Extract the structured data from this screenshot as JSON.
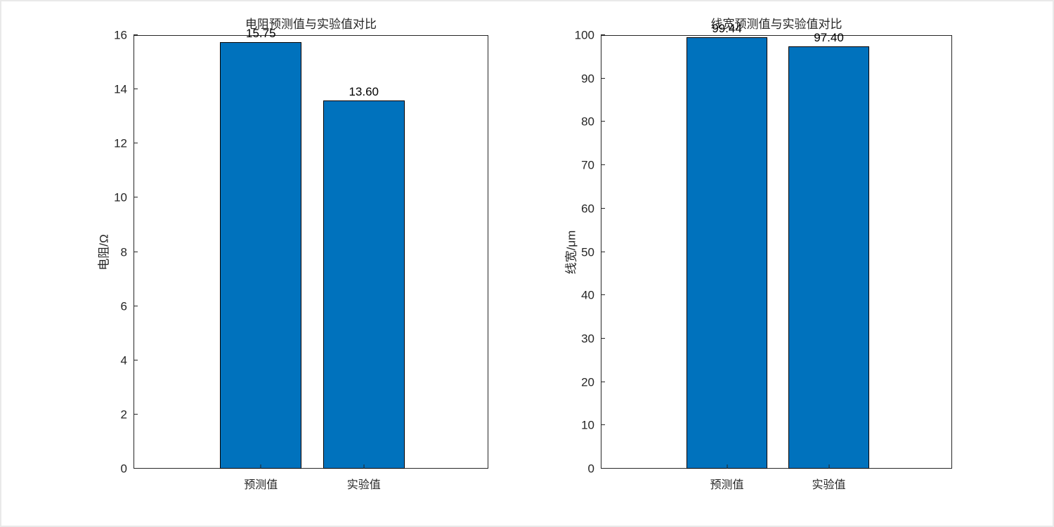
{
  "style": {
    "bar_color": "#0072BD",
    "bar_edge_color": "#000000",
    "axis_color": "#262626",
    "background": "#ffffff"
  },
  "chart_data": [
    {
      "type": "bar",
      "title": "电阻预测值与实验值对比",
      "ylabel": "电阻/Ω",
      "xlabel": "",
      "categories": [
        "预测值",
        "实验值"
      ],
      "values": [
        15.75,
        13.6
      ],
      "value_labels": [
        "15.75",
        "13.60"
      ],
      "ylim": [
        0,
        16
      ],
      "yticks": [
        0,
        2,
        4,
        6,
        8,
        10,
        12,
        14,
        16
      ],
      "grid": false,
      "legend_position": "none"
    },
    {
      "type": "bar",
      "title": "线宽预测值与实验值对比",
      "ylabel": "线宽/μm",
      "xlabel": "",
      "categories": [
        "预测值",
        "实验值"
      ],
      "values": [
        99.44,
        97.4
      ],
      "value_labels": [
        "99.44",
        "97.40"
      ],
      "ylim": [
        0,
        100
      ],
      "yticks": [
        0,
        10,
        20,
        30,
        40,
        50,
        60,
        70,
        80,
        90,
        100
      ],
      "grid": false,
      "legend_position": "none"
    }
  ]
}
